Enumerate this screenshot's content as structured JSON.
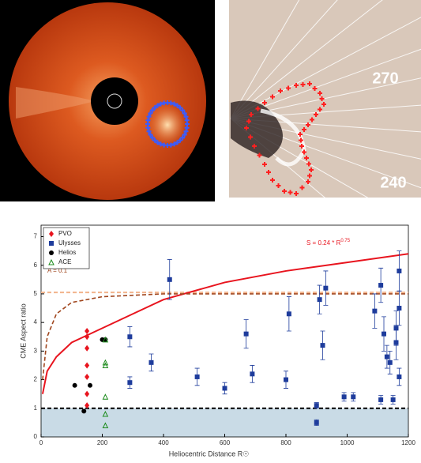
{
  "images": {
    "right_labels": [
      "270",
      "240"
    ]
  },
  "chart_data": {
    "type": "scatter",
    "xlabel": "Heliocentric Distance R☉",
    "ylabel": "CME Aspect ratio",
    "xlim": [
      0,
      1200
    ],
    "ylim": [
      0,
      7.4
    ],
    "xticks": [
      0,
      200,
      400,
      600,
      800,
      1000,
      1200
    ],
    "yticks": [
      0,
      1,
      2,
      3,
      4,
      5,
      6,
      7
    ],
    "legend": "upper left",
    "band": {
      "range": [
        0,
        1
      ],
      "color": "#c9dbe6"
    },
    "hlines": [
      {
        "value": 1,
        "color": "#000000"
      },
      {
        "value": 5.05,
        "color": "#f2b48c"
      }
    ],
    "curves": [
      {
        "color": "#e8141e",
        "x": [
          5,
          20,
          50,
          100,
          200,
          300,
          400,
          600,
          800,
          1000,
          1200
        ],
        "values": [
          1.5,
          2.3,
          2.8,
          3.3,
          3.8,
          4.3,
          4.8,
          5.4,
          5.8,
          6.1,
          6.4
        ]
      },
      {
        "color": "#a0461e",
        "x": [
          5,
          20,
          50,
          100,
          200,
          400,
          800,
          1200
        ],
        "values": [
          2.0,
          3.5,
          4.3,
          4.7,
          4.9,
          5.0,
          5.0,
          5.0
        ]
      }
    ],
    "annotations": [
      {
        "text": "S = 0.24 * R",
        "sup": "0.75",
        "color": "#e8141e"
      },
      {
        "text": "A = 0.1",
        "color": "#a0461e"
      }
    ],
    "series": [
      {
        "name": "PVO",
        "color": "#e8141e",
        "marker": "diamond",
        "x": [
          150,
          150,
          150,
          150,
          150,
          150,
          150
        ],
        "values": [
          1.1,
          1.5,
          2.1,
          2.5,
          3.1,
          3.5,
          3.7
        ]
      },
      {
        "name": "Ulysses",
        "color": "#1e3c9c",
        "marker": "square",
        "x": [
          290,
          290,
          360,
          420,
          510,
          600,
          670,
          690,
          800,
          810,
          900,
          900,
          910,
          920,
          930,
          990,
          1020,
          1090,
          1110,
          1110,
          1120,
          1130,
          1140,
          1150,
          1160,
          1160,
          1170,
          1170,
          1170
        ],
        "values": [
          1.9,
          3.5,
          2.6,
          5.5,
          2.1,
          1.7,
          3.6,
          2.2,
          2.0,
          4.3,
          1.1,
          0.5,
          4.8,
          3.2,
          5.2,
          1.4,
          1.4,
          4.4,
          5.3,
          1.3,
          3.6,
          2.8,
          2.6,
          1.3,
          3.8,
          3.3,
          5.8,
          2.1,
          4.5
        ],
        "errors": [
          0.2,
          0.35,
          0.3,
          0.7,
          0.3,
          0.2,
          0.5,
          0.3,
          0.3,
          0.6,
          0.1,
          0.1,
          0.5,
          0.5,
          0.6,
          0.15,
          0.15,
          0.6,
          0.6,
          0.15,
          0.6,
          0.4,
          0.4,
          0.15,
          0.6,
          0.6,
          0.7,
          0.3,
          0.6
        ]
      },
      {
        "name": "Helios",
        "color": "#000000",
        "marker": "circle",
        "x": [
          110,
          140,
          160,
          200,
          210
        ],
        "values": [
          1.8,
          0.9,
          1.8,
          3.4,
          3.4
        ]
      },
      {
        "name": "ACE",
        "color": "#1e8c1e",
        "marker": "triangle",
        "x": [
          210,
          210,
          210,
          210,
          210,
          210
        ],
        "values": [
          0.4,
          0.8,
          1.4,
          2.5,
          2.6,
          3.4
        ]
      }
    ]
  }
}
